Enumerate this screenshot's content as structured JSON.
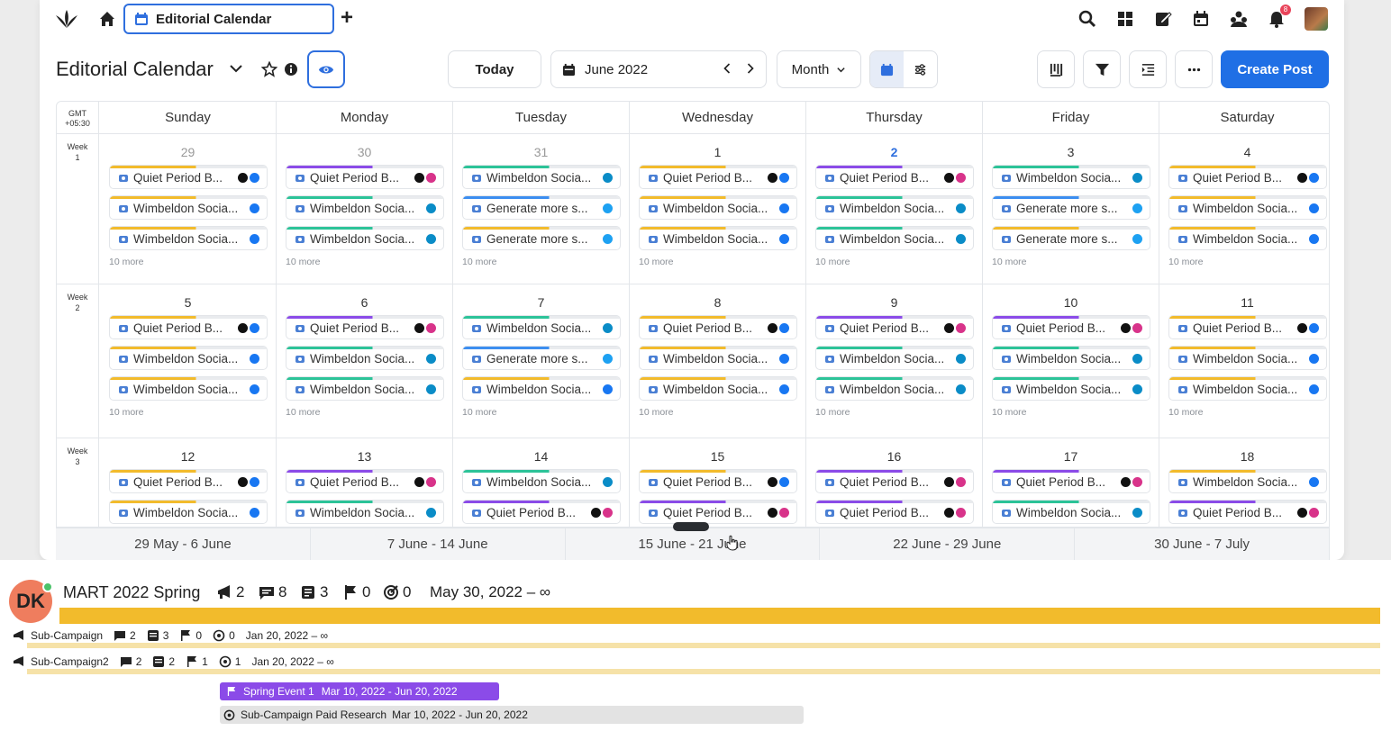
{
  "topbar": {
    "tab_label": "Editorial Calendar",
    "notification_count": "8",
    "icons": [
      "search-icon",
      "grid-icon",
      "compose-icon",
      "calendar-icon",
      "users-icon",
      "bell-icon",
      "avatar"
    ]
  },
  "header": {
    "title": "Editorial Calendar",
    "today_label": "Today",
    "date_label": "June 2022",
    "view_label": "Month",
    "create_label": "Create Post"
  },
  "calendar": {
    "timezone": [
      "GMT",
      "+05:30"
    ],
    "days": [
      "Sunday",
      "Monday",
      "Tuesday",
      "Wednesday",
      "Thursday",
      "Friday",
      "Saturday"
    ],
    "more_label": "10 more",
    "weeks": [
      {
        "label": [
          "Week",
          "1"
        ],
        "cells": [
          {
            "num": "29",
            "style": "muted",
            "posts": [
              [
                "Quiet Period B...",
                "gold",
                "fb"
              ],
              [
                "Wimbeldon Socia...",
                "gold",
                "fb"
              ],
              [
                "Wimbeldon Socia...",
                "gold",
                "fb"
              ]
            ]
          },
          {
            "num": "30",
            "style": "muted",
            "posts": [
              [
                "Quiet Period B...",
                "purple",
                "ig"
              ],
              [
                "Wimbeldon Socia...",
                "green",
                "li"
              ],
              [
                "Wimbeldon Socia...",
                "green",
                "li"
              ]
            ]
          },
          {
            "num": "31",
            "style": "muted",
            "posts": [
              [
                "Wimbeldon Socia...",
                "green",
                "li"
              ],
              [
                "Generate more s...",
                "blue",
                "tw"
              ],
              [
                "Generate more s...",
                "gold",
                "tw"
              ]
            ]
          },
          {
            "num": "1",
            "style": "",
            "posts": [
              [
                "Quiet Period B...",
                "gold",
                "fb"
              ],
              [
                "Wimbeldon Socia...",
                "gold",
                "fb"
              ],
              [
                "Wimbeldon Socia...",
                "gold",
                "fb"
              ]
            ]
          },
          {
            "num": "2",
            "style": "today",
            "posts": [
              [
                "Quiet Period B...",
                "purple",
                "ig"
              ],
              [
                "Wimbeldon Socia...",
                "green",
                "li"
              ],
              [
                "Wimbeldon Socia...",
                "green",
                "li"
              ]
            ]
          },
          {
            "num": "3",
            "style": "",
            "posts": [
              [
                "Wimbeldon Socia...",
                "green",
                "li"
              ],
              [
                "Generate more s...",
                "blue",
                "tw"
              ],
              [
                "Generate more s...",
                "gold",
                "tw"
              ]
            ]
          },
          {
            "num": "4",
            "style": "",
            "posts": [
              [
                "Quiet Period B...",
                "gold",
                "fb"
              ],
              [
                "Wimbeldon Socia...",
                "gold",
                "fb"
              ],
              [
                "Wimbeldon Socia...",
                "gold",
                "fb"
              ]
            ]
          }
        ]
      },
      {
        "label": [
          "Week",
          "2"
        ],
        "cells": [
          {
            "num": "5",
            "style": "",
            "posts": [
              [
                "Quiet Period B...",
                "gold",
                "fb"
              ],
              [
                "Wimbeldon Socia...",
                "gold",
                "fb"
              ],
              [
                "Wimbeldon Socia...",
                "gold",
                "fb"
              ]
            ]
          },
          {
            "num": "6",
            "style": "",
            "posts": [
              [
                "Quiet Period B...",
                "purple",
                "ig"
              ],
              [
                "Wimbeldon Socia...",
                "green",
                "li"
              ],
              [
                "Wimbeldon Socia...",
                "green",
                "li"
              ]
            ]
          },
          {
            "num": "7",
            "style": "",
            "posts": [
              [
                "Wimbeldon Socia...",
                "green",
                "li"
              ],
              [
                "Generate more s...",
                "blue",
                "tw"
              ],
              [
                "Wimbeldon Socia...",
                "gold",
                "fb"
              ]
            ]
          },
          {
            "num": "8",
            "style": "",
            "posts": [
              [
                "Quiet Period B...",
                "gold",
                "fb"
              ],
              [
                "Wimbeldon Socia...",
                "gold",
                "fb"
              ],
              [
                "Wimbeldon Socia...",
                "gold",
                "fb"
              ]
            ]
          },
          {
            "num": "9",
            "style": "",
            "posts": [
              [
                "Quiet Period B...",
                "purple",
                "ig"
              ],
              [
                "Wimbeldon Socia...",
                "green",
                "li"
              ],
              [
                "Wimbeldon Socia...",
                "green",
                "li"
              ]
            ]
          },
          {
            "num": "10",
            "style": "",
            "posts": [
              [
                "Quiet Period B...",
                "purple",
                "ig"
              ],
              [
                "Wimbeldon Socia...",
                "green",
                "li"
              ],
              [
                "Wimbeldon Socia...",
                "green",
                "li"
              ]
            ]
          },
          {
            "num": "11",
            "style": "",
            "posts": [
              [
                "Quiet Period B...",
                "gold",
                "fb"
              ],
              [
                "Wimbeldon Socia...",
                "gold",
                "fb"
              ],
              [
                "Wimbeldon Socia...",
                "gold",
                "fb"
              ]
            ]
          }
        ]
      },
      {
        "label": [
          "Week",
          "3"
        ],
        "cells": [
          {
            "num": "12",
            "style": "",
            "posts": [
              [
                "Quiet Period B...",
                "gold",
                "fb"
              ],
              [
                "Wimbeldon Socia...",
                "gold",
                "fb"
              ]
            ]
          },
          {
            "num": "13",
            "style": "",
            "posts": [
              [
                "Quiet Period B...",
                "purple",
                "ig"
              ],
              [
                "Wimbeldon Socia...",
                "green",
                "li"
              ]
            ]
          },
          {
            "num": "14",
            "style": "",
            "posts": [
              [
                "Wimbeldon Socia...",
                "green",
                "li"
              ],
              [
                "Quiet Period B...",
                "purple",
                "ig"
              ]
            ]
          },
          {
            "num": "15",
            "style": "",
            "posts": [
              [
                "Quiet Period B...",
                "gold",
                "fb"
              ],
              [
                "Quiet Period B...",
                "purple",
                "ig"
              ]
            ]
          },
          {
            "num": "16",
            "style": "",
            "posts": [
              [
                "Quiet Period B...",
                "purple",
                "ig"
              ],
              [
                "Quiet Period B...",
                "purple",
                "ig"
              ]
            ]
          },
          {
            "num": "17",
            "style": "",
            "posts": [
              [
                "Quiet Period B...",
                "purple",
                "ig"
              ],
              [
                "Wimbeldon Socia...",
                "green",
                "li"
              ]
            ]
          },
          {
            "num": "18",
            "style": "",
            "posts": [
              [
                "Wimbeldon Socia...",
                "gold",
                "fb"
              ],
              [
                "Quiet Period B...",
                "purple",
                "ig"
              ]
            ]
          }
        ]
      }
    ],
    "ranges": [
      "29 May - 6 June",
      "7 June - 14 June",
      "15 June - 21 June",
      "22 June - 29 June",
      "30 June - 7 July"
    ]
  },
  "colors": {
    "gold": "#f2bb2c",
    "purple": "#8b4be8",
    "green": "#2cc398",
    "blue": "#3c8ef0",
    "fb": "#1877f2",
    "ig": "#d8338a",
    "li": "#0a8cc7",
    "tw": "#1da1f2",
    "accent": "#1f6fe5"
  },
  "campaign": {
    "avatar_initials": "DK",
    "title": "MART 2022 Spring",
    "stats": {
      "announce": "2",
      "messages": "8",
      "notes": "3",
      "flags": "0",
      "targets": "0"
    },
    "date": "May 30, 2022 – ∞",
    "subs": [
      {
        "name": "Sub-Campaign",
        "messages": "2",
        "notes": "3",
        "flags": "0",
        "targets": "0",
        "date": "Jan 20, 2022 – ∞"
      },
      {
        "name": "Sub-Campaign2",
        "messages": "2",
        "notes": "2",
        "flags": "1",
        "targets": "1",
        "date": "Jan 20, 2022 – ∞"
      }
    ],
    "event": {
      "name": "Spring Event 1",
      "date": "Mar 10, 2022 - Jun 20, 2022"
    },
    "research": {
      "name": "Sub-Campaign Paid Research",
      "date": "Mar 10, 2022 - Jun 20, 2022"
    }
  }
}
